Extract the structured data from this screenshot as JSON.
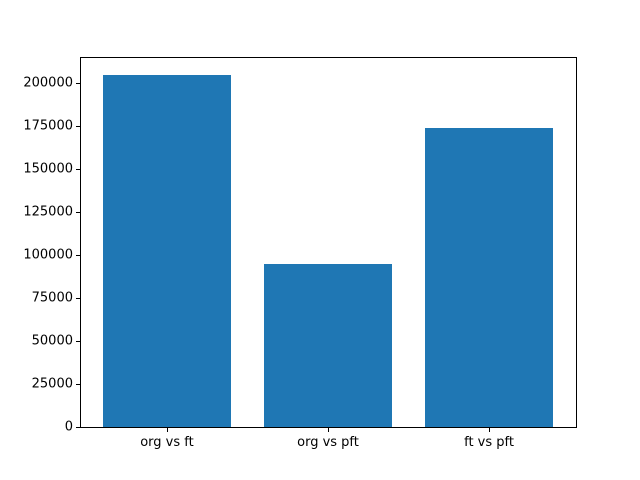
{
  "chart_data": {
    "type": "bar",
    "categories": [
      "org vs ft",
      "org vs pft",
      "ft vs pft"
    ],
    "values": [
      204800,
      95000,
      173500
    ],
    "title": "",
    "xlabel": "",
    "ylabel": "",
    "ylim": [
      0,
      215000
    ],
    "xlim": [
      -0.54,
      2.54
    ],
    "yticks": [
      0,
      25000,
      50000,
      75000,
      100000,
      125000,
      150000,
      175000,
      200000
    ],
    "bar_width_fraction": 0.8,
    "bar_color": "#1f77b4",
    "background_color": "#ffffff",
    "spine_color": "#000000",
    "grid": false,
    "legend": false
  }
}
